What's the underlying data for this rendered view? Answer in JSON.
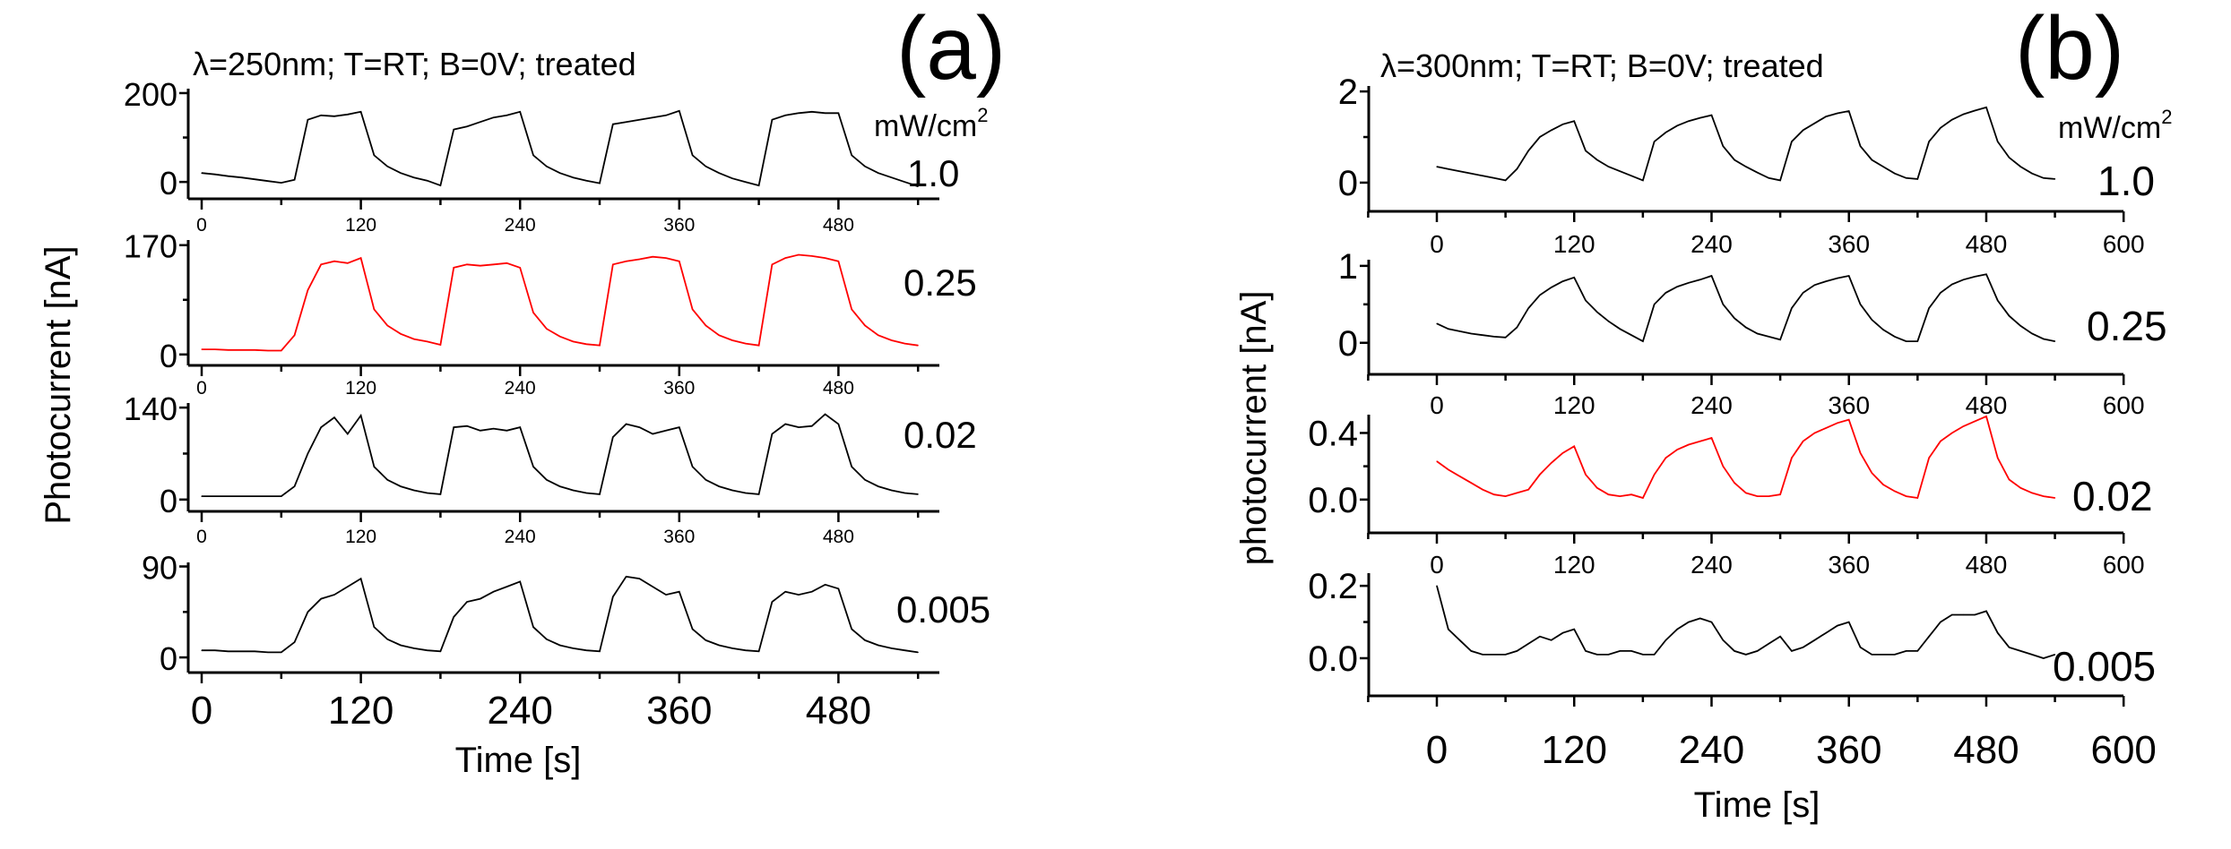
{
  "chart_data": [
    {
      "panel": "(a)",
      "type": "line",
      "title": "λ=250nm; T=RT; B=0V; treated",
      "ylabel": "Photocurrent [nA]",
      "xlabel": "Time [s]",
      "legend_unit_base": "mW/cm",
      "legend_unit_exp": "2",
      "xlim": [
        -10,
        555
      ],
      "xticks": [
        0,
        120,
        240,
        360,
        480
      ],
      "x": [
        0,
        10,
        20,
        30,
        40,
        50,
        60,
        70,
        80,
        90,
        100,
        110,
        120,
        130,
        140,
        150,
        160,
        170,
        180,
        190,
        200,
        210,
        220,
        230,
        240,
        250,
        260,
        270,
        280,
        290,
        300,
        310,
        320,
        330,
        340,
        350,
        360,
        370,
        380,
        390,
        400,
        410,
        420,
        430,
        440,
        450,
        460,
        470,
        480,
        490,
        500,
        510,
        520,
        530,
        540
      ],
      "series": [
        {
          "name": "1.0",
          "color": "#000000",
          "ylim": [
            -38,
            210
          ],
          "yticks": [
            0,
            200
          ],
          "values": [
            20,
            17,
            13,
            10,
            6,
            2,
            -2,
            5,
            140,
            150,
            148,
            152,
            158,
            60,
            35,
            20,
            10,
            3,
            -8,
            118,
            125,
            135,
            145,
            150,
            158,
            60,
            35,
            20,
            10,
            3,
            -3,
            130,
            135,
            140,
            145,
            150,
            160,
            60,
            35,
            20,
            8,
            0,
            -8,
            140,
            150,
            155,
            158,
            155,
            155,
            60,
            35,
            20,
            10,
            0,
            -10
          ]
        },
        {
          "name": "0.25",
          "color": "#ff0000",
          "ylim": [
            -17,
            178
          ],
          "yticks": [
            0,
            170
          ],
          "values": [
            8,
            8,
            7,
            7,
            7,
            6,
            6,
            30,
            100,
            140,
            145,
            142,
            150,
            70,
            45,
            32,
            24,
            20,
            15,
            135,
            140,
            138,
            140,
            142,
            135,
            65,
            40,
            28,
            20,
            16,
            14,
            140,
            145,
            148,
            152,
            150,
            145,
            70,
            45,
            30,
            22,
            17,
            14,
            140,
            150,
            155,
            153,
            150,
            145,
            70,
            45,
            30,
            22,
            17,
            14
          ]
        },
        {
          "name": "0.02",
          "color": "#000000",
          "ylim": [
            -18,
            147
          ],
          "yticks": [
            0,
            140
          ],
          "values": [
            5,
            5,
            5,
            5,
            5,
            5,
            5,
            20,
            70,
            110,
            125,
            100,
            128,
            50,
            30,
            20,
            14,
            10,
            8,
            110,
            112,
            105,
            108,
            105,
            110,
            50,
            30,
            20,
            14,
            10,
            8,
            95,
            115,
            110,
            100,
            105,
            110,
            50,
            30,
            20,
            14,
            10,
            8,
            100,
            115,
            110,
            112,
            130,
            115,
            50,
            30,
            20,
            14,
            10,
            8
          ]
        },
        {
          "name": "0.005",
          "color": "#000000",
          "ylim": [
            -15,
            94
          ],
          "yticks": [
            0,
            90
          ],
          "values": [
            7,
            7,
            6,
            6,
            6,
            5,
            5,
            15,
            45,
            58,
            62,
            70,
            78,
            30,
            18,
            12,
            9,
            7,
            6,
            40,
            55,
            58,
            65,
            70,
            75,
            30,
            18,
            12,
            9,
            7,
            6,
            60,
            80,
            78,
            70,
            62,
            65,
            28,
            17,
            12,
            9,
            7,
            6,
            55,
            65,
            62,
            65,
            72,
            68,
            28,
            17,
            12,
            9,
            7,
            5
          ]
        }
      ]
    },
    {
      "panel": "(b)",
      "type": "line",
      "title": "λ=300nm; T=RT; B=0V; treated",
      "ylabel": "photocurrent [nA]",
      "xlabel": "Time [s]",
      "legend_unit_base": "mW/cm",
      "legend_unit_exp": "2",
      "xlim": [
        -60,
        600
      ],
      "xticks": [
        0,
        120,
        240,
        360,
        480,
        600
      ],
      "x": [
        0,
        10,
        20,
        30,
        40,
        50,
        60,
        70,
        80,
        90,
        100,
        110,
        120,
        130,
        140,
        150,
        160,
        170,
        180,
        190,
        200,
        210,
        220,
        230,
        240,
        250,
        260,
        270,
        280,
        290,
        300,
        310,
        320,
        330,
        340,
        350,
        360,
        370,
        380,
        390,
        400,
        410,
        420,
        430,
        440,
        450,
        460,
        470,
        480,
        490,
        500,
        510,
        520,
        530,
        540
      ],
      "series": [
        {
          "name": "1.0",
          "color": "#000000",
          "ylim": [
            -0.63,
            2.12
          ],
          "yticks": [
            0,
            2
          ],
          "ytick_labels": [
            "0",
            "2"
          ],
          "values": [
            0.35,
            0.3,
            0.25,
            0.2,
            0.15,
            0.1,
            0.05,
            0.3,
            0.7,
            1.0,
            1.15,
            1.28,
            1.35,
            0.7,
            0.5,
            0.35,
            0.25,
            0.15,
            0.05,
            0.9,
            1.1,
            1.25,
            1.35,
            1.42,
            1.48,
            0.8,
            0.5,
            0.35,
            0.22,
            0.1,
            0.05,
            0.9,
            1.15,
            1.3,
            1.45,
            1.52,
            1.57,
            0.8,
            0.5,
            0.35,
            0.2,
            0.1,
            0.08,
            0.9,
            1.2,
            1.38,
            1.5,
            1.58,
            1.65,
            0.9,
            0.55,
            0.35,
            0.2,
            0.1,
            0.08
          ]
        },
        {
          "name": "0.25",
          "color": "#000000",
          "ylim": [
            -0.41,
            1.08
          ],
          "yticks": [
            0,
            1
          ],
          "ytick_labels": [
            "0",
            "1"
          ],
          "values": [
            0.25,
            0.18,
            0.15,
            0.12,
            0.1,
            0.08,
            0.07,
            0.2,
            0.45,
            0.62,
            0.72,
            0.8,
            0.85,
            0.55,
            0.4,
            0.28,
            0.18,
            0.1,
            0.02,
            0.5,
            0.65,
            0.73,
            0.78,
            0.82,
            0.87,
            0.5,
            0.32,
            0.2,
            0.12,
            0.08,
            0.04,
            0.45,
            0.65,
            0.75,
            0.8,
            0.84,
            0.87,
            0.5,
            0.3,
            0.17,
            0.08,
            0.02,
            0.02,
            0.45,
            0.65,
            0.76,
            0.82,
            0.86,
            0.89,
            0.55,
            0.35,
            0.22,
            0.12,
            0.05,
            0.02
          ]
        },
        {
          "name": "0.02",
          "color": "#ff0000",
          "ylim": [
            -0.2,
            0.51
          ],
          "yticks": [
            0,
            0.4
          ],
          "ytick_labels": [
            "0.0",
            "0.4"
          ],
          "values": [
            0.23,
            0.18,
            0.14,
            0.1,
            0.06,
            0.03,
            0.02,
            0.04,
            0.06,
            0.15,
            0.22,
            0.28,
            0.32,
            0.15,
            0.07,
            0.03,
            0.02,
            0.03,
            0.01,
            0.15,
            0.25,
            0.3,
            0.33,
            0.35,
            0.37,
            0.2,
            0.1,
            0.04,
            0.02,
            0.02,
            0.03,
            0.25,
            0.35,
            0.4,
            0.43,
            0.46,
            0.48,
            0.28,
            0.16,
            0.09,
            0.05,
            0.02,
            0.01,
            0.25,
            0.35,
            0.4,
            0.44,
            0.47,
            0.5,
            0.25,
            0.12,
            0.07,
            0.04,
            0.02,
            0.01
          ]
        },
        {
          "name": "0.005",
          "color": "#000000",
          "ylim": [
            -0.104,
            0.235
          ],
          "yticks": [
            0,
            0.2
          ],
          "ytick_labels": [
            "0.0",
            "0.2"
          ],
          "values": [
            0.2,
            0.08,
            0.05,
            0.02,
            0.01,
            0.01,
            0.01,
            0.02,
            0.04,
            0.06,
            0.05,
            0.07,
            0.08,
            0.02,
            0.01,
            0.01,
            0.02,
            0.02,
            0.01,
            0.01,
            0.05,
            0.08,
            0.1,
            0.11,
            0.1,
            0.05,
            0.02,
            0.01,
            0.02,
            0.04,
            0.06,
            0.02,
            0.03,
            0.05,
            0.07,
            0.09,
            0.1,
            0.03,
            0.01,
            0.01,
            0.01,
            0.02,
            0.02,
            0.06,
            0.1,
            0.12,
            0.12,
            0.12,
            0.13,
            0.07,
            0.03,
            0.02,
            0.01,
            0.0,
            0.01
          ]
        }
      ]
    }
  ]
}
